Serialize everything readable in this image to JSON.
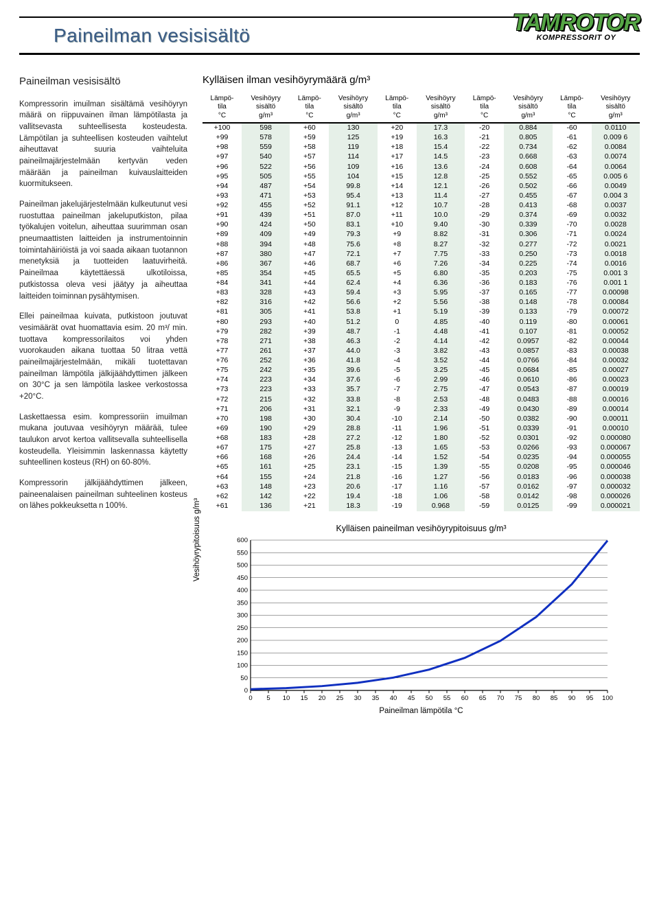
{
  "doc_title": "Paineilman vesisisältö",
  "logo_main": "TAMROTOR",
  "logo_sub": "KOMPRESSORIT OY",
  "left": {
    "heading": "Paineilman vesisisältö",
    "p1": "Kompressorin imuilman sisältämä vesihöyryn määrä on riippuvainen ilman lämpötilasta ja vallitsevasta suhteellisesta kosteudesta. Lämpötilan ja suhteellisen kosteuden vaihtelut aiheuttavat suuria vaihteluita paineilmajärjestelmään kertyvän veden määrään ja paineilman kuivauslaitteiden kuormitukseen.",
    "p2": "Paineilman jakelujärjestelmään kulkeutunut vesi ruostuttaa paineilman jakeluputkiston, pilaa työkalujen voitelun, aiheuttaa suurimman osan pneumaattisten laitteiden ja instrumentoinnin toimintahäiriöistä ja voi saada aikaan tuotannon menetyksiä ja tuotteiden laatuvirheitä. Paineilmaa käytettäessä ulkotiloissa, putkistossa oleva vesi jäätyy ja aiheuttaa laitteiden toiminnan pysähtymisen.",
    "p3": "Ellei paineilmaa kuivata, putkistoon joutuvat vesimäärät ovat huomattavia esim. 20 m³/ min. tuottava kompressorilaitos voi yhden vuorokauden aikana tuottaa 50 litraa vettä paineilmajärjestelmään, mikäli tuotettavan paineilman lämpötila jälkijäähdyttimen jälkeen on 30°C ja sen lämpötila laskee verkostossa +20°C.",
    "p4": "Laskettaessa esim. kompressoriin imuilman mukana joutuvaa vesihöyryn määrää, tulee taulukon arvot kertoa vallitsevalla suhteellisella kosteudella. Yleisimmin laskennassa käytetty suhteellinen kosteus (RH) on 60-80%.",
    "p5": "Kompressorin jälkijäähdyttimen jälkeen, paineenalaisen paineilman suhteelinen kosteus on lähes pokkeuksetta n 100%."
  },
  "table": {
    "title": "Kylläisen ilman vesihöyrymäärä g/m³",
    "header_temp": "Lämpö-\ntila\n°C",
    "header_val": "Vesihöyry\nsisältö\ng/m³",
    "rows": [
      [
        "+100",
        "598",
        "+60",
        "130",
        "+20",
        "17.3",
        "-20",
        "0.884",
        "-60",
        "0.0110"
      ],
      [
        "+99",
        "578",
        "+59",
        "125",
        "+19",
        "16.3",
        "-21",
        "0.805",
        "-61",
        "0.009 6"
      ],
      [
        "+98",
        "559",
        "+58",
        "119",
        "+18",
        "15.4",
        "-22",
        "0.734",
        "-62",
        "0.0084"
      ],
      [
        "+97",
        "540",
        "+57",
        "114",
        "+17",
        "14.5",
        "-23",
        "0.668",
        "-63",
        "0.0074"
      ],
      [
        "+96",
        "522",
        "+56",
        "109",
        "+16",
        "13.6",
        "-24",
        "0.608",
        "-64",
        "0.0064"
      ],
      [
        "+95",
        "505",
        "+55",
        "104",
        "+15",
        "12.8",
        "-25",
        "0.552",
        "-65",
        "0.005 6"
      ],
      [
        "+94",
        "487",
        "+54",
        "99.8",
        "+14",
        "12.1",
        "-26",
        "0.502",
        "-66",
        "0.0049"
      ],
      [
        "+93",
        "471",
        "+53",
        "95.4",
        "+13",
        "11.4",
        "-27",
        "0.455",
        "-67",
        "0.004 3"
      ],
      [
        "+92",
        "455",
        "+52",
        "91.1",
        "+12",
        "10.7",
        "-28",
        "0.413",
        "-68",
        "0.0037"
      ],
      [
        "+91",
        "439",
        "+51",
        "87.0",
        "+11",
        "10.0",
        "-29",
        "0.374",
        "-69",
        "0.0032"
      ],
      [
        "+90",
        "424",
        "+50",
        "83.1",
        "+10",
        "9.40",
        "-30",
        "0.339",
        "-70",
        "0.0028"
      ],
      [
        "+89",
        "409",
        "+49",
        "79.3",
        "+9",
        "8.82",
        "-31",
        "0.306",
        "-71",
        "0.0024"
      ],
      [
        "+88",
        "394",
        "+48",
        "75.6",
        "+8",
        "8.27",
        "-32",
        "0.277",
        "-72",
        "0.0021"
      ],
      [
        "+87",
        "380",
        "+47",
        "72.1",
        "+7",
        "7.75",
        "-33",
        "0.250",
        "-73",
        "0.0018"
      ],
      [
        "+86",
        "367",
        "+46",
        "68.7",
        "+6",
        "7.26",
        "-34",
        "0.225",
        "-74",
        "0.0016"
      ],
      [
        "+85",
        "354",
        "+45",
        "65.5",
        "+5",
        "6.80",
        "-35",
        "0.203",
        "-75",
        "0.001 3"
      ],
      [
        "+84",
        "341",
        "+44",
        "62.4",
        "+4",
        "6.36",
        "-36",
        "0.183",
        "-76",
        "0.001 1"
      ],
      [
        "+83",
        "328",
        "+43",
        "59.4",
        "+3",
        "5.95",
        "-37",
        "0.165",
        "-77",
        "0.00098"
      ],
      [
        "+82",
        "316",
        "+42",
        "56.6",
        "+2",
        "5.56",
        "-38",
        "0.148",
        "-78",
        "0.00084"
      ],
      [
        "+81",
        "305",
        "+41",
        "53.8",
        "+1",
        "5.19",
        "-39",
        "0.133",
        "-79",
        "0.00072"
      ],
      [
        "+80",
        "293",
        "+40",
        "51.2",
        "0",
        "4.85",
        "-40",
        "0.119",
        "-80",
        "0.00061"
      ],
      [
        "+79",
        "282",
        "+39",
        "48.7",
        "-1",
        "4.48",
        "-41",
        "0.107",
        "-81",
        "0.00052"
      ],
      [
        "+78",
        "271",
        "+38",
        "46.3",
        "-2",
        "4.14",
        "-42",
        "0.0957",
        "-82",
        "0.00044"
      ],
      [
        "+77",
        "261",
        "+37",
        "44.0",
        "-3",
        "3.82",
        "-43",
        "0.0857",
        "-83",
        "0.00038"
      ],
      [
        "+76",
        "252",
        "+36",
        "41.8",
        "-4",
        "3.52",
        "-44",
        "0.0766",
        "-84",
        "0.00032"
      ],
      [
        "+75",
        "242",
        "+35",
        "39.6",
        "-5",
        "3.25",
        "-45",
        "0.0684",
        "-85",
        "0.00027"
      ],
      [
        "+74",
        "223",
        "+34",
        "37.6",
        "-6",
        "2.99",
        "-46",
        "0.0610",
        "-86",
        "0.00023"
      ],
      [
        "+73",
        "223",
        "+33",
        "35.7",
        "-7",
        "2.75",
        "-47",
        "0.0543",
        "-87",
        "0.00019"
      ],
      [
        "+72",
        "215",
        "+32",
        "33.8",
        "-8",
        "2.53",
        "-48",
        "0.0483",
        "-88",
        "0.00016"
      ],
      [
        "+71",
        "206",
        "+31",
        "32.1",
        "-9",
        "2.33",
        "-49",
        "0.0430",
        "-89",
        "0.00014"
      ],
      [
        "+70",
        "198",
        "+30",
        "30.4",
        "-10",
        "2.14",
        "-50",
        "0.0382",
        "-90",
        "0.00011"
      ],
      [
        "+69",
        "190",
        "+29",
        "28.8",
        "-11",
        "1.96",
        "-51",
        "0.0339",
        "-91",
        "0.00010"
      ],
      [
        "+68",
        "183",
        "+28",
        "27.2",
        "-12",
        "1.80",
        "-52",
        "0.0301",
        "-92",
        "0.000080"
      ],
      [
        "+67",
        "175",
        "+27",
        "25.8",
        "-13",
        "1.65",
        "-53",
        "0.0266",
        "-93",
        "0.000067"
      ],
      [
        "+66",
        "168",
        "+26",
        "24.4",
        "-14",
        "1.52",
        "-54",
        "0.0235",
        "-94",
        "0.000055"
      ],
      [
        "+65",
        "161",
        "+25",
        "23.1",
        "-15",
        "1.39",
        "-55",
        "0.0208",
        "-95",
        "0.000046"
      ],
      [
        "+64",
        "155",
        "+24",
        "21.8",
        "-16",
        "1.27",
        "-56",
        "0.0183",
        "-96",
        "0.000038"
      ],
      [
        "+63",
        "148",
        "+23",
        "20.6",
        "-17",
        "1.16",
        "-57",
        "0.0162",
        "-97",
        "0.000032"
      ],
      [
        "+62",
        "142",
        "+22",
        "19.4",
        "-18",
        "1.06",
        "-58",
        "0.0142",
        "-98",
        "0.000026"
      ],
      [
        "+61",
        "136",
        "+21",
        "18.3",
        "-19",
        "0.968",
        "-59",
        "0.0125",
        "-99",
        "0.000021"
      ]
    ]
  },
  "chart": {
    "title": "Kylläisen paineilman vesihöyrypitoisuus g/m³",
    "ylabel": "Vesihöyrypitoisuus g/m³",
    "xlabel": "Paineilman lämpötila °C",
    "xlim": [
      0,
      100
    ],
    "ylim": [
      0,
      600
    ],
    "xticks": [
      0,
      5,
      10,
      15,
      20,
      25,
      30,
      35,
      40,
      45,
      50,
      55,
      60,
      65,
      70,
      75,
      80,
      85,
      90,
      95,
      100
    ],
    "yticks": [
      0,
      50,
      100,
      150,
      200,
      250,
      300,
      350,
      400,
      450,
      500,
      550,
      600
    ],
    "line_color": "#1030c0",
    "grid_color": "#777777",
    "points_x": [
      0,
      10,
      20,
      30,
      40,
      50,
      60,
      70,
      80,
      90,
      100
    ],
    "points_y": [
      4.85,
      9.4,
      17.3,
      30.4,
      51.2,
      83.1,
      130,
      198,
      293,
      424,
      598
    ]
  }
}
